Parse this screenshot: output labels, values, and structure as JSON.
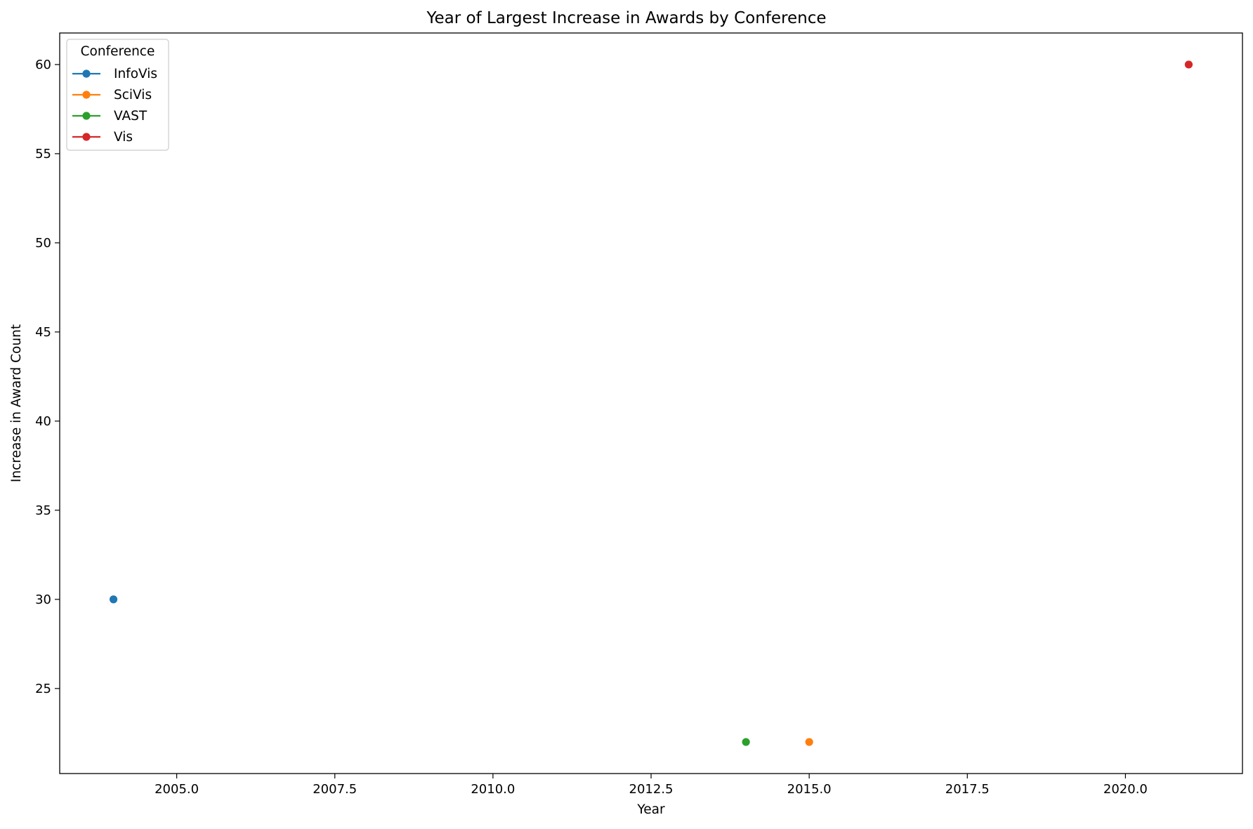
{
  "chart_data": {
    "type": "line",
    "title": "Year of Largest Increase in Awards by Conference",
    "xlabel": "Year",
    "ylabel": "Increase in Award Count",
    "xlim": [
      2003.15,
      2021.85
    ],
    "ylim": [
      20.23,
      61.77
    ],
    "x_ticks": [
      2005.0,
      2007.5,
      2010.0,
      2012.5,
      2015.0,
      2017.5,
      2020.0
    ],
    "x_tick_labels": [
      "2005.0",
      "2007.5",
      "2010.0",
      "2012.5",
      "2015.0",
      "2017.5",
      "2020.0"
    ],
    "y_ticks": [
      25,
      30,
      35,
      40,
      45,
      50,
      55,
      60
    ],
    "y_tick_labels": [
      "25",
      "30",
      "35",
      "40",
      "45",
      "50",
      "55",
      "60"
    ],
    "grid": false,
    "legend": {
      "title": "Conference",
      "placement": "top-left"
    },
    "series": [
      {
        "name": "InfoVis",
        "color": "#1f77b4",
        "points": [
          {
            "x": 2004,
            "y": 30
          }
        ]
      },
      {
        "name": "SciVis",
        "color": "#ff7f0e",
        "points": [
          {
            "x": 2015,
            "y": 22
          }
        ]
      },
      {
        "name": "VAST",
        "color": "#2ca02c",
        "points": [
          {
            "x": 2014,
            "y": 22
          }
        ]
      },
      {
        "name": "Vis",
        "color": "#d62728",
        "points": [
          {
            "x": 2021,
            "y": 60
          }
        ]
      }
    ]
  }
}
